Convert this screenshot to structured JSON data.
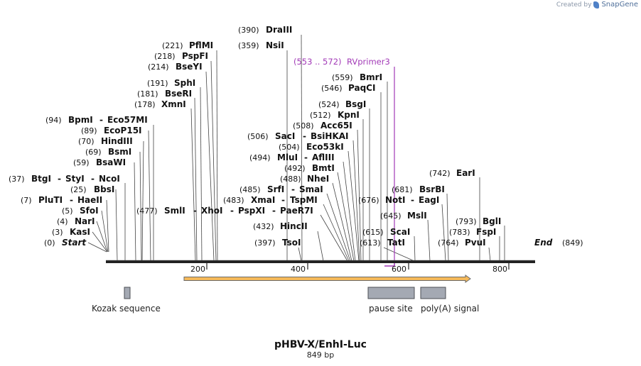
{
  "credit": {
    "prefix": "Created by",
    "brand": "SnapGene"
  },
  "map": {
    "title": "pHBV-X/EnhI-Luc",
    "length_label": "849 bp",
    "length": 849,
    "ticks": [
      "200",
      "400",
      "600",
      "800"
    ],
    "tick_values": [
      200,
      400,
      600,
      800
    ],
    "colors": {
      "text": "#111111",
      "line": "#444444",
      "primer": "#a23ab7",
      "arrow_fill": "#f5b95a",
      "arrow_stroke": "#6b6b6b",
      "feature_fill": "#a4a9b3",
      "feature_stroke": "#4d4f55"
    },
    "sites": [
      {
        "pos": "(0)",
        "name": "Start"
      },
      {
        "pos": "(3)",
        "name": "KasI"
      },
      {
        "pos": "(4)",
        "name": "NarI"
      },
      {
        "pos": "(5)",
        "name": "SfoI"
      },
      {
        "pos": "(7)",
        "name": "PluTI",
        "alias": "HaeII"
      },
      {
        "pos": "(25)",
        "name": "BbsI"
      },
      {
        "pos": "(37)",
        "name": "BtgI",
        "alias": "StyI",
        "alias2": "NcoI"
      },
      {
        "pos": "(59)",
        "name": "BsaWI"
      },
      {
        "pos": "(69)",
        "name": "BsmI"
      },
      {
        "pos": "(70)",
        "name": "HindIII"
      },
      {
        "pos": "(89)",
        "name": "EcoP15I"
      },
      {
        "pos": "(94)",
        "name": "BpmI",
        "alias": "Eco57MI"
      },
      {
        "pos": "(178)",
        "name": "XmnI"
      },
      {
        "pos": "(181)",
        "name": "BseRI"
      },
      {
        "pos": "(191)",
        "name": "SphI"
      },
      {
        "pos": "(214)",
        "name": "BseYI"
      },
      {
        "pos": "(218)",
        "name": "PspFI"
      },
      {
        "pos": "(221)",
        "name": "PflMI"
      },
      {
        "pos": "(477)",
        "name": "SmlI",
        "alias": "XhoI",
        "alias2": "PspXI",
        "alias3": "PaeR7I"
      },
      {
        "pos": "(390)",
        "name": "DraIII"
      },
      {
        "pos": "(359)",
        "name": "NsiI"
      },
      {
        "pos": "(506)",
        "name": "SacI",
        "alias": "BsiHKAI"
      },
      {
        "pos": "(508)",
        "name": "Acc65I"
      },
      {
        "pos": "(504)",
        "name": "Eco53kI"
      },
      {
        "pos": "(494)",
        "name": "MluI",
        "alias": "AflIII"
      },
      {
        "pos": "(492)",
        "name": "BmtI"
      },
      {
        "pos": "(488)",
        "name": "NheI"
      },
      {
        "pos": "(485)",
        "name": "SrfI",
        "alias": "SmaI"
      },
      {
        "pos": "(483)",
        "name": "XmaI",
        "alias": "TspMI"
      },
      {
        "pos": "(432)",
        "name": "HincII"
      },
      {
        "pos": "(397)",
        "name": "TsoI"
      },
      {
        "pos": "(559)",
        "name": "BmrI"
      },
      {
        "pos": "(546)",
        "name": "PaqCI"
      },
      {
        "pos": "(524)",
        "name": "BsgI"
      },
      {
        "pos": "(512)",
        "name": "KpnI"
      },
      {
        "pos": "(676)",
        "name": "NotI",
        "alias": "EagI"
      },
      {
        "pos": "(681)",
        "name": "BsrBI"
      },
      {
        "pos": "(645)",
        "name": "MslI"
      },
      {
        "pos": "(615)",
        "name": "ScaI"
      },
      {
        "pos": "(613)",
        "name": "TatI"
      },
      {
        "pos": "(742)",
        "name": "EarI"
      },
      {
        "pos": "(793)",
        "name": "BglI"
      },
      {
        "pos": "(783)",
        "name": "FspI"
      },
      {
        "pos": "(764)",
        "name": "PvuI"
      },
      {
        "pos": "(849)",
        "name": "End"
      }
    ],
    "primer": {
      "range": "(553 .. 572)",
      "name": "RVprimer3",
      "start": 553,
      "end": 572
    },
    "features": [
      {
        "label": "Kozak sequence",
        "start": 35,
        "end": 46
      },
      {
        "label": "pause site",
        "start": 519,
        "end": 611
      },
      {
        "label": "poly(A) signal",
        "start": 625,
        "end": 676
      }
    ],
    "orf": {
      "start": 156,
      "end": 725
    }
  }
}
